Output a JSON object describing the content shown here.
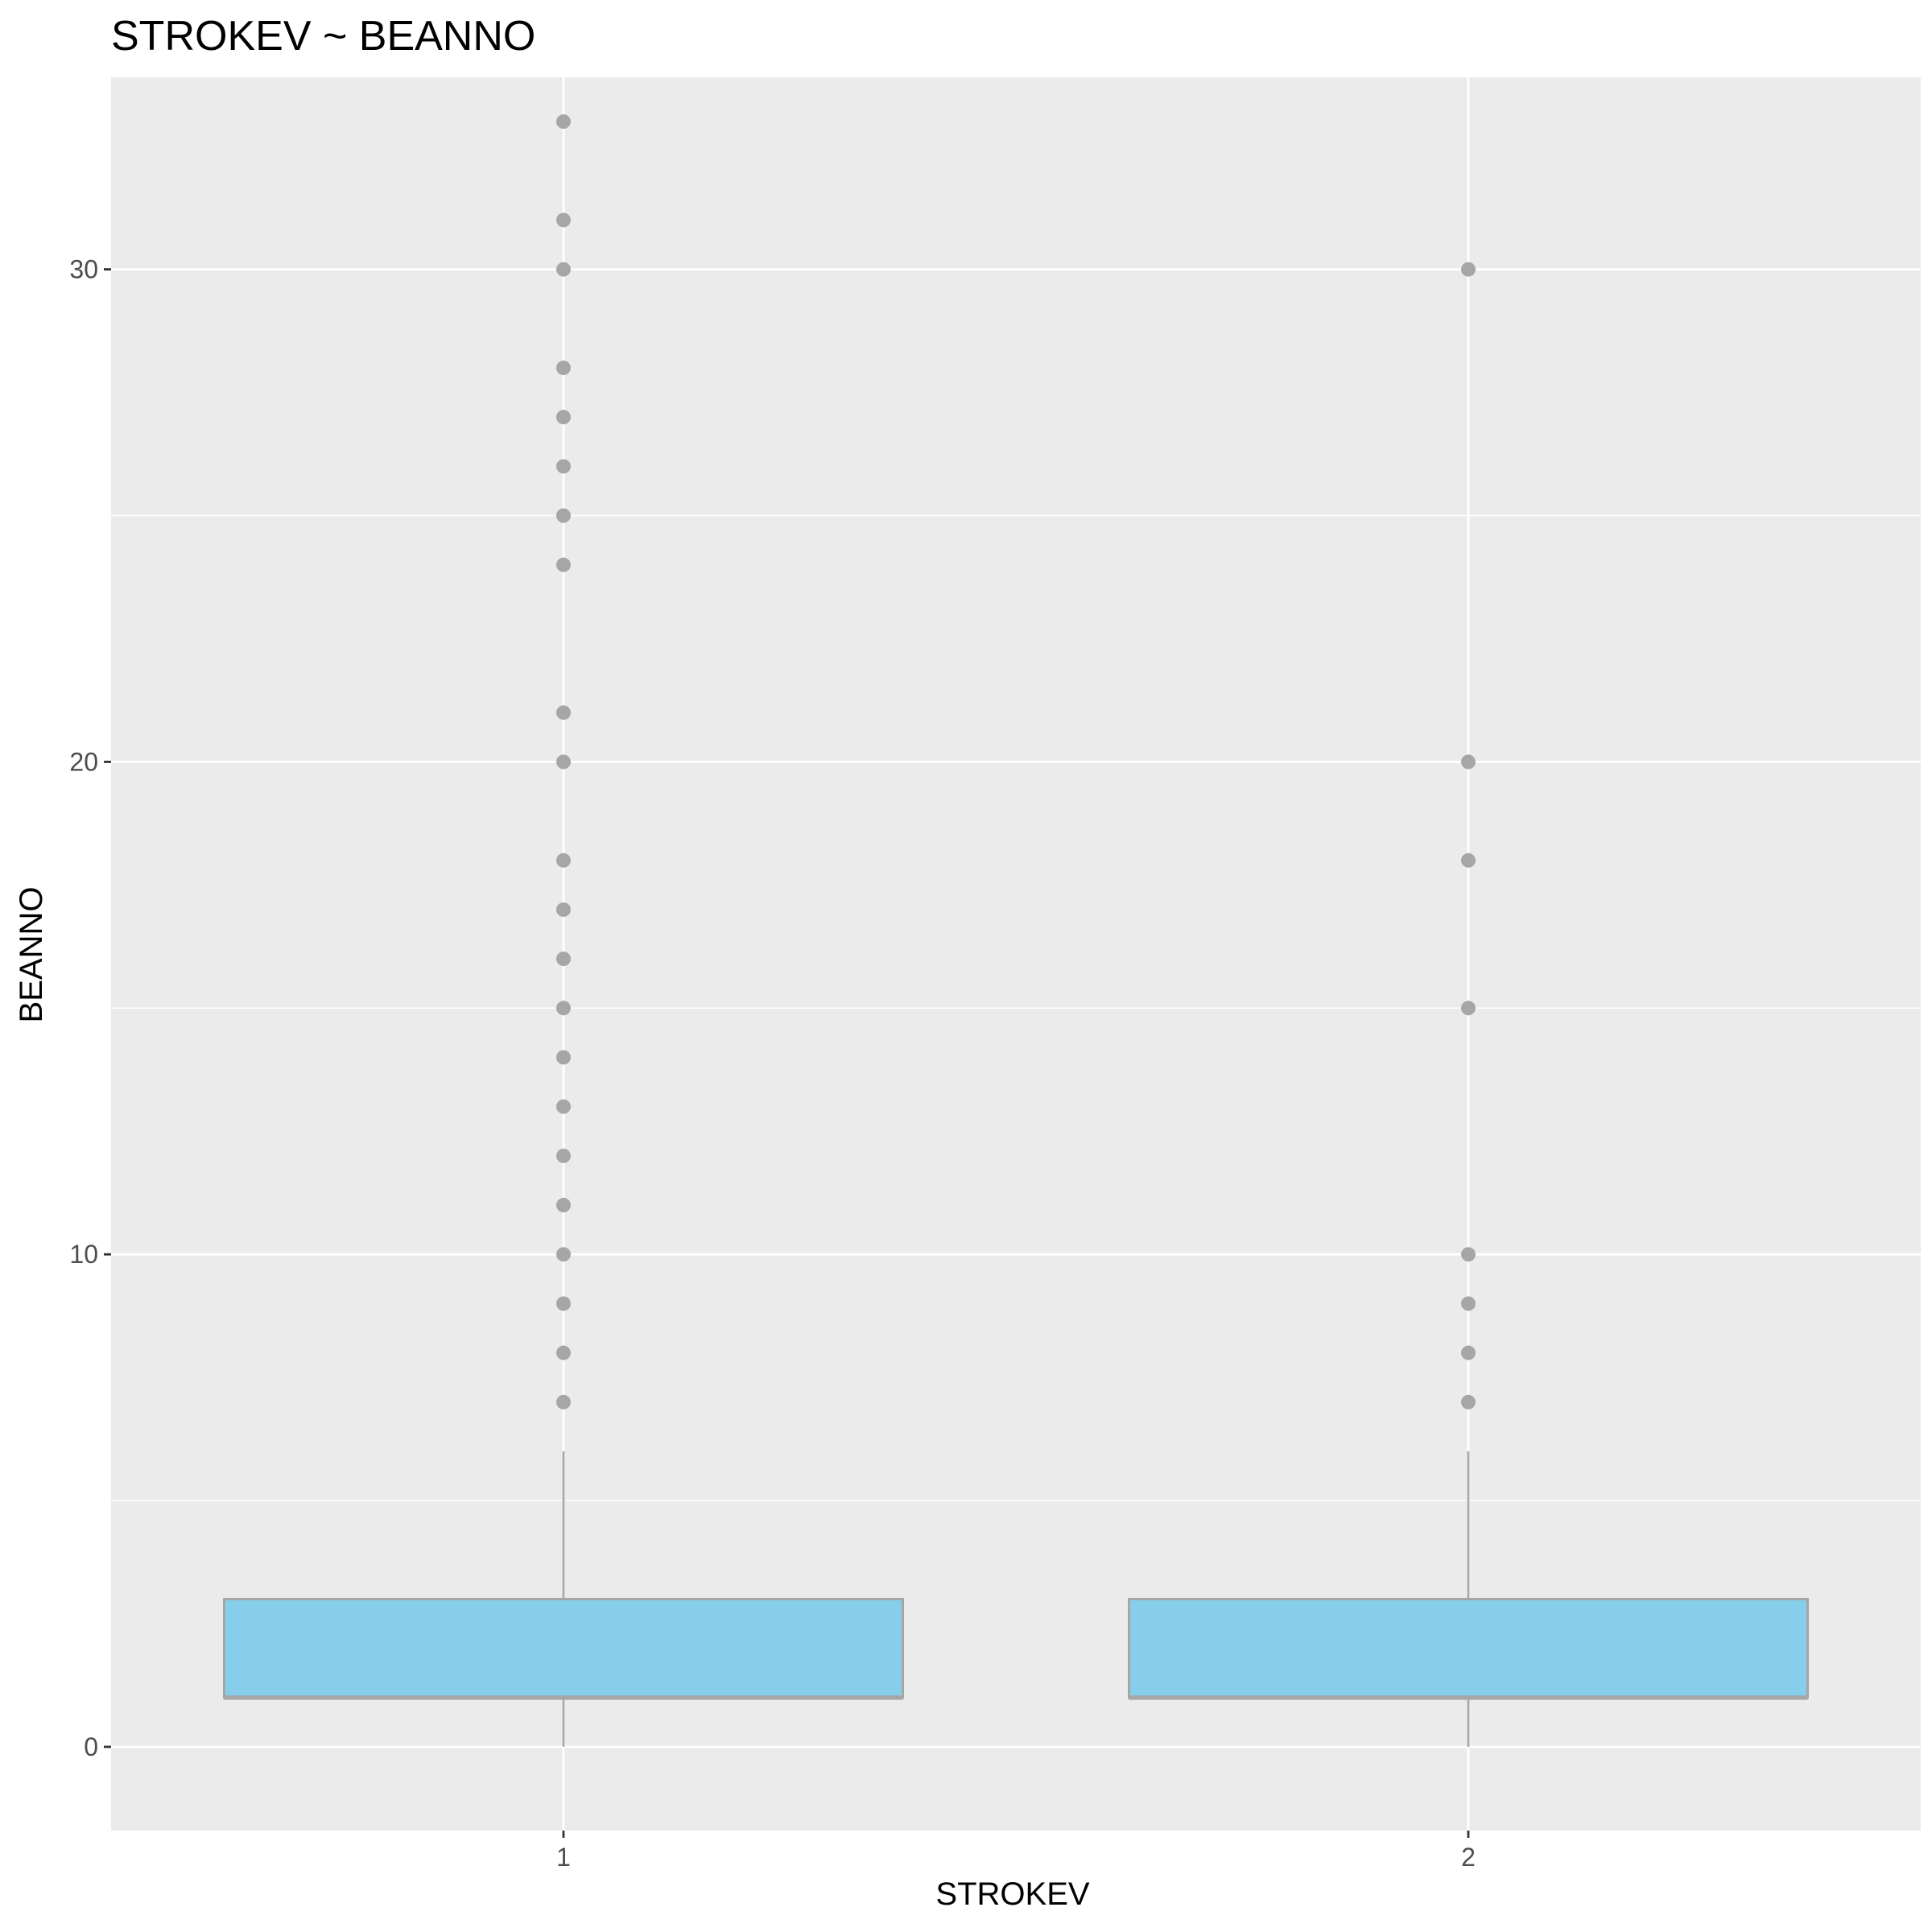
{
  "chart_data": {
    "type": "boxplot",
    "title": "STROKEV ~ BEANNO",
    "xlabel": "STROKEV",
    "ylabel": "BEANNO",
    "categories": [
      "1",
      "2"
    ],
    "ylim": [
      -1.7,
      33.9
    ],
    "yticks": [
      0,
      10,
      20,
      30
    ],
    "grid": true,
    "legend": "none",
    "colors": {
      "panel_background": "#ebebeb",
      "grid": "#ffffff",
      "box_fill": "#87ceeb",
      "box_outline": "#a6a6a6",
      "outlier": "#a6a6a6",
      "tick_text": "#4d4d4d",
      "tick_mark": "#333333"
    },
    "boxes": [
      {
        "category": "1",
        "whisker_low": 0,
        "q1": 1,
        "median": 1,
        "q3": 3,
        "whisker_high": 6,
        "outliers": [
          7,
          8,
          9,
          10,
          11,
          12,
          13,
          14,
          15,
          16,
          17,
          18,
          20,
          21,
          24,
          25,
          26,
          27,
          28,
          30,
          31,
          33
        ]
      },
      {
        "category": "2",
        "whisker_low": 0,
        "q1": 1,
        "median": 1,
        "q3": 3,
        "whisker_high": 6,
        "outliers": [
          7,
          8,
          9,
          10,
          15,
          18,
          20,
          30
        ]
      }
    ]
  }
}
